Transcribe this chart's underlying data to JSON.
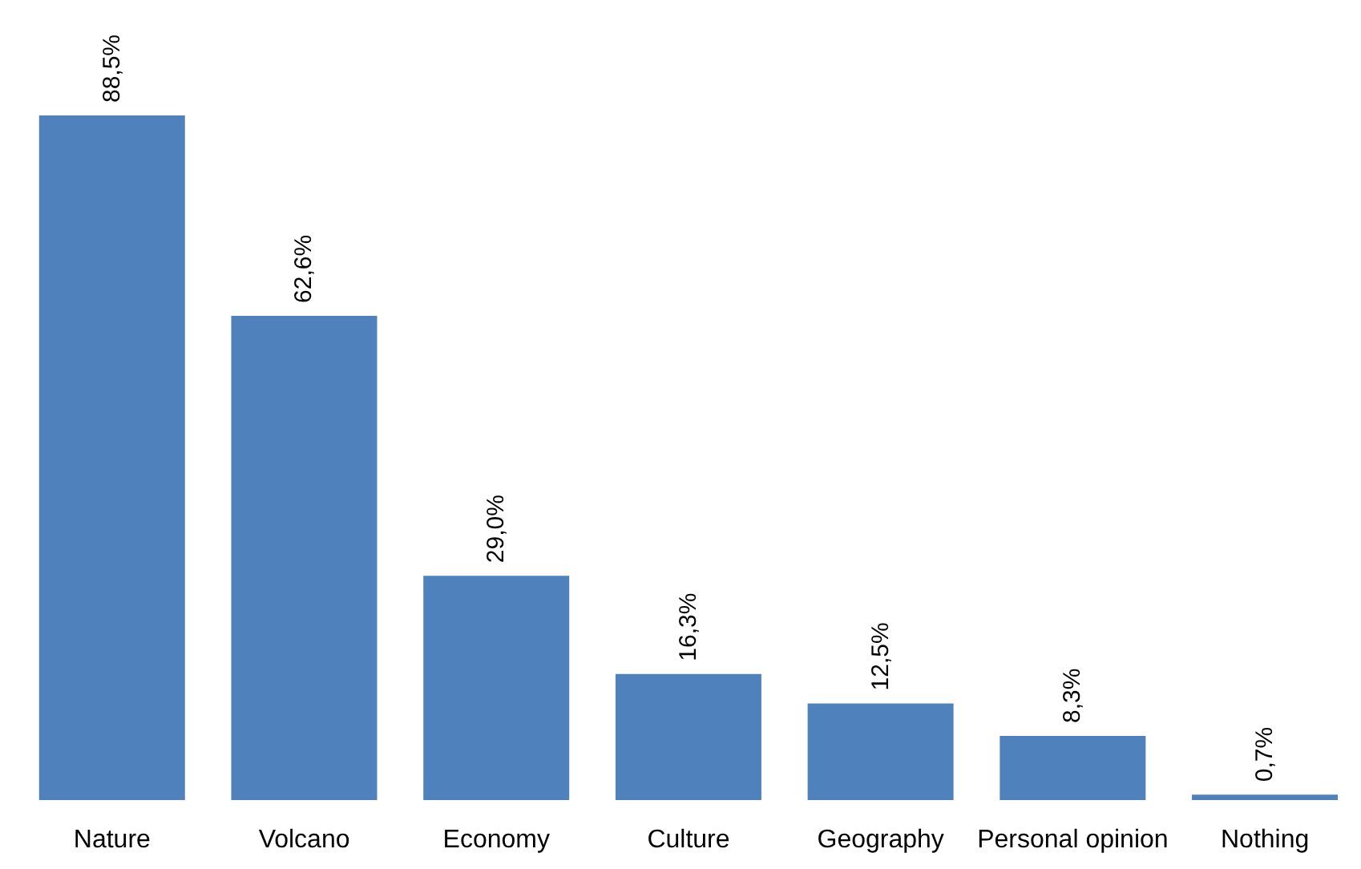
{
  "chart_data": {
    "type": "bar",
    "categories": [
      "Nature",
      "Volcano",
      "Economy",
      "Culture",
      "Geography",
      "Personal opinion",
      "Nothing"
    ],
    "values": [
      88.5,
      62.6,
      29.0,
      16.3,
      12.5,
      8.3,
      0.7
    ],
    "value_labels": [
      "88,5%",
      "62,6%",
      "29,0%",
      "16,3%",
      "12,5%",
      "8,3%",
      "0,7%"
    ],
    "color": "#4f81bd",
    "grid": false,
    "legend": false
  }
}
